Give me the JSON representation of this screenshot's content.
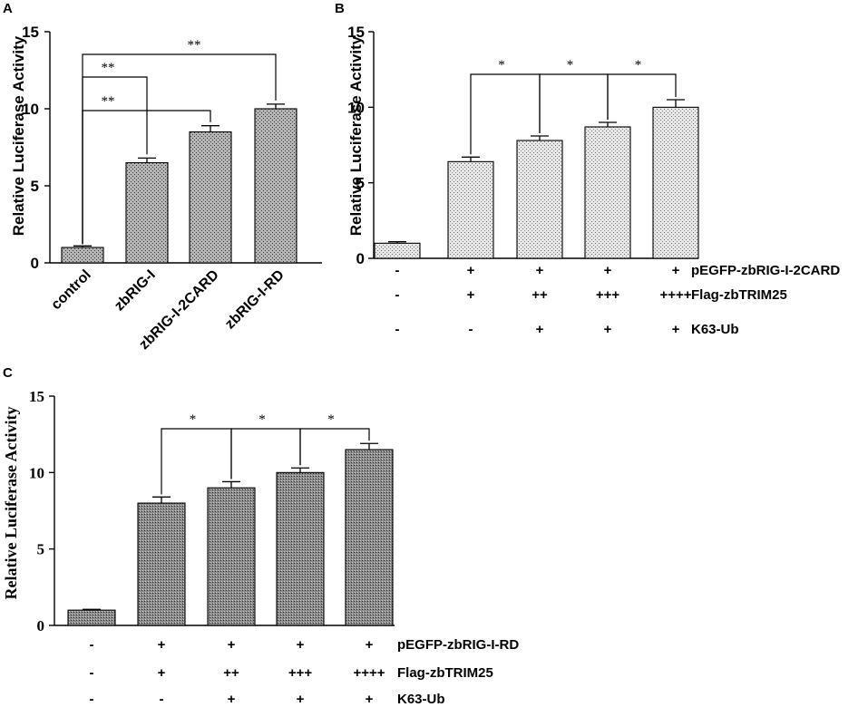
{
  "chart_data": [
    {
      "panel": "A",
      "type": "bar",
      "ylabel": "Relative Luciferase Activity",
      "ylim": [
        0,
        15
      ],
      "yticks": [
        0,
        5,
        10,
        15
      ],
      "categories": [
        "control",
        "zbRIG-I",
        "zbRIG-I-2CARD",
        "zbRIG-I-RD"
      ],
      "values": [
        1.0,
        6.5,
        8.5,
        10.0
      ],
      "errors": [
        0.1,
        0.3,
        0.4,
        0.3
      ],
      "significance": [
        {
          "from": 0,
          "to": 1,
          "label": "**"
        },
        {
          "from": 0,
          "to": 2,
          "label": "**"
        },
        {
          "from": 0,
          "to": 3,
          "label": "**"
        }
      ]
    },
    {
      "panel": "B",
      "type": "bar",
      "ylabel": "Relative Luciferase Activity",
      "ylim": [
        0,
        15
      ],
      "yticks": [
        0,
        5,
        10,
        15
      ],
      "values": [
        1.0,
        6.4,
        7.8,
        8.7,
        10.0
      ],
      "errors": [
        0.1,
        0.3,
        0.3,
        0.3,
        0.5
      ],
      "significance": [
        {
          "from": 1,
          "to": 2,
          "label": "*"
        },
        {
          "from": 2,
          "to": 3,
          "label": "*"
        },
        {
          "from": 3,
          "to": 4,
          "label": "*"
        }
      ],
      "conditions": [
        {
          "label": "pEGFP-zbRIG-I-2CARD",
          "marks": [
            "-",
            "+",
            "+",
            "+",
            "+"
          ]
        },
        {
          "label": "Flag-zbTRIM25",
          "marks": [
            "-",
            "+",
            "++",
            "+++",
            "++++"
          ]
        },
        {
          "label": "K63-Ub",
          "marks": [
            "-",
            "-",
            "+",
            "+",
            "+"
          ]
        }
      ]
    },
    {
      "panel": "C",
      "type": "bar",
      "ylabel": "Relative Luciferase Activity",
      "ylim": [
        0,
        15
      ],
      "yticks": [
        0,
        5,
        10,
        15
      ],
      "values": [
        1.0,
        8.0,
        9.0,
        10.0,
        11.5
      ],
      "errors": [
        0.05,
        0.4,
        0.4,
        0.3,
        0.4
      ],
      "significance": [
        {
          "from": 1,
          "to": 2,
          "label": "*"
        },
        {
          "from": 2,
          "to": 3,
          "label": "*"
        },
        {
          "from": 3,
          "to": 4,
          "label": "*"
        }
      ],
      "conditions": [
        {
          "label": "pEGFP-zbRIG-I-RD",
          "marks": [
            "-",
            "+",
            "+",
            "+",
            "+"
          ]
        },
        {
          "label": "Flag-zbTRIM25",
          "marks": [
            "-",
            "+",
            "++",
            "+++",
            "++++"
          ]
        },
        {
          "label": "K63-Ub",
          "marks": [
            "-",
            "-",
            "+",
            "+",
            "+"
          ]
        }
      ]
    }
  ]
}
